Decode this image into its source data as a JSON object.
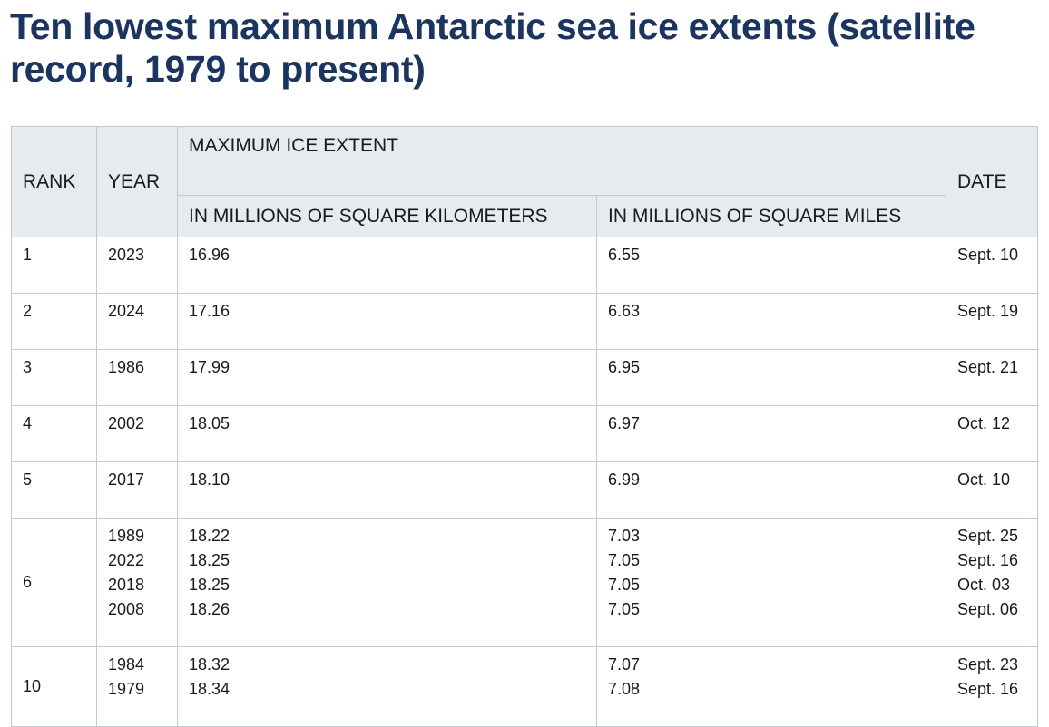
{
  "title": "Ten lowest maximum Antarctic sea ice extents (satellite record, 1979 to present)",
  "table": {
    "headers": {
      "rank": "RANK",
      "year": "YEAR",
      "max_extent": "MAXIMUM ICE EXTENT",
      "km": "IN MILLIONS OF SQUARE KILOMETERS",
      "miles": "IN MILLIONS OF SQUARE MILES",
      "date": "DATE"
    },
    "rows": [
      {
        "rank": "1",
        "years": [
          "2023"
        ],
        "km": [
          "16.96"
        ],
        "miles": [
          "6.55"
        ],
        "dates": [
          "Sept. 10"
        ]
      },
      {
        "rank": "2",
        "years": [
          "2024"
        ],
        "km": [
          "17.16"
        ],
        "miles": [
          "6.63"
        ],
        "dates": [
          "Sept. 19"
        ]
      },
      {
        "rank": "3",
        "years": [
          "1986"
        ],
        "km": [
          "17.99"
        ],
        "miles": [
          "6.95"
        ],
        "dates": [
          "Sept. 21"
        ]
      },
      {
        "rank": "4",
        "years": [
          "2002"
        ],
        "km": [
          "18.05"
        ],
        "miles": [
          "6.97"
        ],
        "dates": [
          "Oct. 12"
        ]
      },
      {
        "rank": "5",
        "years": [
          "2017"
        ],
        "km": [
          "18.10"
        ],
        "miles": [
          "6.99"
        ],
        "dates": [
          "Oct. 10"
        ]
      },
      {
        "rank": "6",
        "years": [
          "1989",
          "2022",
          "2018",
          "2008"
        ],
        "km": [
          "18.22",
          "18.25",
          "18.25",
          "18.26"
        ],
        "miles": [
          "7.03",
          "7.05",
          "7.05",
          "7.05"
        ],
        "dates": [
          "Sept. 25",
          "Sept. 16",
          "Oct. 03",
          "Sept. 06"
        ]
      },
      {
        "rank": "10",
        "years": [
          "1984",
          "1979"
        ],
        "km": [
          "18.32",
          "18.34"
        ],
        "miles": [
          "7.07",
          "7.08"
        ],
        "dates": [
          "Sept. 23",
          "Sept. 16"
        ]
      }
    ]
  }
}
